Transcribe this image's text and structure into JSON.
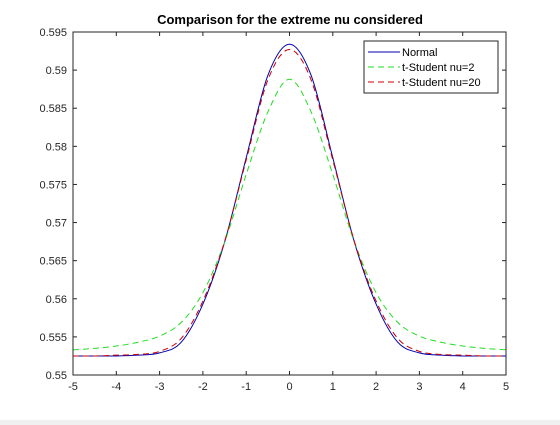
{
  "chart_data": {
    "type": "line",
    "title": "Comparison for the extreme nu considered",
    "xlabel": "",
    "ylabel": "",
    "xlim": [
      -5,
      5
    ],
    "ylim": [
      0.55,
      0.595
    ],
    "x_ticks": [
      -5,
      -4,
      -3,
      -2,
      -1,
      0,
      1,
      2,
      3,
      4,
      5
    ],
    "x_tick_labels": [
      "-5",
      "-4",
      "-3",
      "-2",
      "-1",
      "0",
      "1",
      "2",
      "3",
      "4",
      "5"
    ],
    "y_ticks": [
      0.55,
      0.555,
      0.56,
      0.565,
      0.57,
      0.575,
      0.58,
      0.585,
      0.59,
      0.595
    ],
    "y_tick_labels": [
      "0.55",
      "0.555",
      "0.56",
      "0.565",
      "0.57",
      "0.575",
      "0.58",
      "0.585",
      "0.59",
      "0.595"
    ],
    "grid": false,
    "legend_position": "top-right",
    "x": [
      -5,
      -4.5,
      -4,
      -3.5,
      -3,
      -2.5,
      -2,
      -1.5,
      -1,
      -0.5,
      0,
      0.5,
      1,
      1.5,
      2,
      2.5,
      3,
      3.5,
      4,
      4.5,
      5
    ],
    "series": [
      {
        "name": "Normal",
        "color": "#0000b0",
        "dash": "solid",
        "values": [
          0.5525,
          0.5525,
          0.5525,
          0.5526,
          0.5529,
          0.5543,
          0.5593,
          0.5674,
          0.5785,
          0.5893,
          0.5934,
          0.5893,
          0.5785,
          0.5674,
          0.5593,
          0.5543,
          0.5529,
          0.5526,
          0.5525,
          0.5525,
          0.5525
        ]
      },
      {
        "name": "t-Student nu=2",
        "color": "#22dd22",
        "dash": "dashed",
        "values": [
          0.5533,
          0.5535,
          0.5538,
          0.5543,
          0.5551,
          0.5569,
          0.5608,
          0.5674,
          0.5763,
          0.5845,
          0.5888,
          0.5845,
          0.5763,
          0.5674,
          0.5608,
          0.5569,
          0.5551,
          0.5543,
          0.5538,
          0.5535,
          0.5533
        ]
      },
      {
        "name": "t-Student nu=20",
        "color": "#cc0000",
        "dash": "dashed",
        "values": [
          0.5525,
          0.5525,
          0.5526,
          0.5527,
          0.5531,
          0.5548,
          0.5597,
          0.5675,
          0.5782,
          0.5887,
          0.5927,
          0.5887,
          0.5782,
          0.5675,
          0.5597,
          0.5548,
          0.5531,
          0.5527,
          0.5526,
          0.5525,
          0.5525
        ]
      }
    ]
  }
}
